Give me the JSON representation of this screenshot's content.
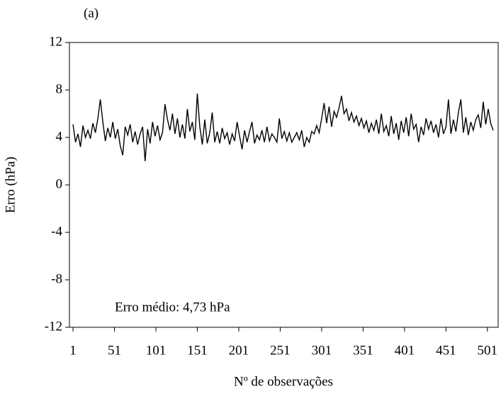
{
  "chart_data": {
    "type": "line",
    "title": "(a)",
    "y_label": "Erro (hPa)",
    "x_label": "Nº de observações",
    "annotation": "Erro médio: 4,73 hPa",
    "color": "#000000",
    "x": [
      1,
      4,
      7,
      10,
      13,
      16,
      19,
      22,
      25,
      28,
      31,
      34,
      37,
      40,
      43,
      46,
      49,
      52,
      55,
      58,
      61,
      64,
      67,
      70,
      73,
      76,
      79,
      82,
      85,
      88,
      91,
      94,
      97,
      100,
      103,
      106,
      109,
      112,
      115,
      118,
      121,
      124,
      127,
      130,
      133,
      136,
      139,
      142,
      145,
      148,
      151,
      154,
      157,
      160,
      163,
      166,
      169,
      172,
      175,
      178,
      181,
      184,
      187,
      190,
      193,
      196,
      199,
      202,
      205,
      208,
      211,
      214,
      217,
      220,
      223,
      226,
      229,
      232,
      235,
      238,
      241,
      244,
      247,
      250,
      253,
      256,
      259,
      262,
      265,
      268,
      271,
      274,
      277,
      280,
      283,
      286,
      289,
      292,
      295,
      298,
      301,
      304,
      307,
      310,
      313,
      316,
      319,
      322,
      325,
      328,
      331,
      334,
      337,
      340,
      343,
      346,
      349,
      352,
      355,
      358,
      361,
      364,
      367,
      370,
      373,
      376,
      379,
      382,
      385,
      388,
      391,
      394,
      397,
      400,
      403,
      406,
      409,
      412,
      415,
      418,
      421,
      424,
      427,
      430,
      433,
      436,
      439,
      442,
      445,
      448,
      451,
      454,
      457,
      460,
      463,
      466,
      469,
      472,
      475,
      478,
      481,
      484,
      487,
      490,
      493,
      496,
      499,
      502,
      505,
      508
    ],
    "values": [
      5.1,
      3.6,
      4.3,
      3.2,
      5.0,
      4.0,
      4.6,
      3.9,
      5.2,
      4.4,
      5.6,
      7.2,
      5.3,
      3.7,
      4.8,
      4.0,
      5.3,
      3.9,
      4.7,
      3.3,
      2.5,
      4.9,
      4.2,
      5.1,
      3.6,
      4.5,
      3.4,
      4.3,
      4.9,
      2.0,
      4.7,
      3.5,
      5.3,
      4.1,
      5.0,
      3.8,
      4.4,
      6.8,
      5.5,
      4.6,
      6.0,
      4.3,
      5.6,
      4.0,
      5.1,
      3.9,
      6.4,
      4.5,
      5.3,
      3.8,
      7.7,
      4.9,
      3.4,
      5.5,
      3.5,
      4.4,
      6.1,
      3.6,
      4.5,
      3.5,
      4.8,
      3.9,
      4.4,
      3.4,
      4.3,
      3.7,
      5.3,
      4.1,
      3.0,
      4.6,
      3.6,
      4.5,
      5.3,
      3.5,
      4.2,
      3.8,
      4.6,
      3.6,
      4.9,
      3.7,
      4.3,
      4.0,
      3.6,
      5.6,
      3.9,
      4.5,
      3.7,
      4.4,
      3.6,
      4.0,
      4.4,
      3.8,
      4.6,
      3.2,
      4.0,
      3.6,
      4.5,
      4.3,
      5.0,
      4.4,
      5.6,
      6.9,
      5.2,
      6.6,
      4.9,
      6.2,
      5.7,
      6.5,
      7.5,
      6.0,
      6.4,
      5.4,
      6.1,
      5.3,
      5.8,
      5.0,
      5.6,
      4.8,
      5.4,
      4.4,
      5.2,
      4.6,
      5.5,
      4.3,
      6.0,
      4.5,
      5.0,
      4.1,
      5.8,
      4.3,
      5.2,
      3.8,
      5.4,
      4.4,
      5.7,
      4.1,
      6.0,
      4.7,
      5.1,
      3.6,
      4.9,
      4.2,
      5.6,
      4.7,
      5.4,
      4.4,
      5.1,
      4.0,
      5.6,
      4.3,
      4.9,
      7.2,
      4.3,
      5.5,
      4.5,
      6.1,
      7.2,
      4.4,
      5.7,
      4.2,
      5.3,
      4.6,
      5.5,
      5.9,
      4.8,
      7.0,
      5.1,
      6.4,
      5.2,
      4.6
    ],
    "xlim": [
      -3.3,
      514
    ],
    "xticks": [
      1,
      51,
      101,
      151,
      201,
      251,
      301,
      351,
      401,
      451,
      501
    ],
    "ylim": [
      -12,
      12
    ],
    "yticks": [
      12,
      8,
      4,
      0,
      -4,
      -8,
      -12
    ]
  }
}
